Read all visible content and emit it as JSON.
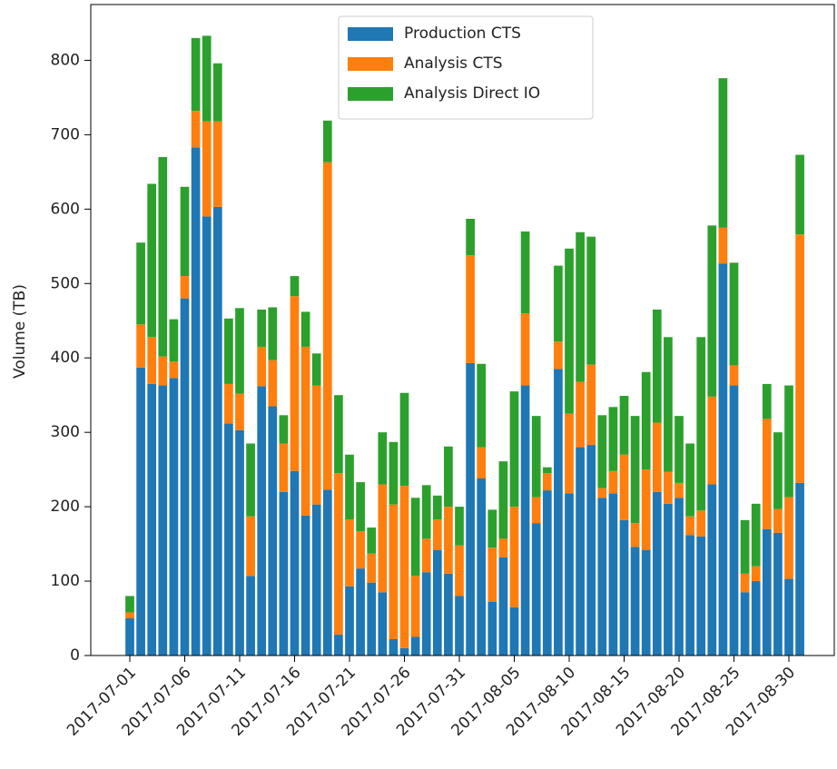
{
  "chart_data": {
    "type": "bar",
    "stacked": true,
    "ylabel": "Volume (TB)",
    "x": [
      "2017-07-01",
      "2017-07-02",
      "2017-07-03",
      "2017-07-04",
      "2017-07-05",
      "2017-07-06",
      "2017-07-07",
      "2017-07-08",
      "2017-07-09",
      "2017-07-10",
      "2017-07-11",
      "2017-07-12",
      "2017-07-13",
      "2017-07-14",
      "2017-07-15",
      "2017-07-16",
      "2017-07-17",
      "2017-07-18",
      "2017-07-19",
      "2017-07-20",
      "2017-07-21",
      "2017-07-22",
      "2017-07-23",
      "2017-07-24",
      "2017-07-25",
      "2017-07-26",
      "2017-07-27",
      "2017-07-28",
      "2017-07-29",
      "2017-07-30",
      "2017-07-31",
      "2017-08-01",
      "2017-08-02",
      "2017-08-03",
      "2017-08-04",
      "2017-08-05",
      "2017-08-06",
      "2017-08-07",
      "2017-08-08",
      "2017-08-09",
      "2017-08-10",
      "2017-08-11",
      "2017-08-12",
      "2017-08-13",
      "2017-08-14",
      "2017-08-15",
      "2017-08-16",
      "2017-08-17",
      "2017-08-18",
      "2017-08-19",
      "2017-08-20",
      "2017-08-21",
      "2017-08-22",
      "2017-08-23",
      "2017-08-24",
      "2017-08-25",
      "2017-08-26",
      "2017-08-27",
      "2017-08-28",
      "2017-08-29",
      "2017-08-30",
      "2017-08-31"
    ],
    "xticks": [
      "2017-07-01",
      "2017-07-06",
      "2017-07-11",
      "2017-07-16",
      "2017-07-21",
      "2017-07-26",
      "2017-07-31",
      "2017-08-05",
      "2017-08-10",
      "2017-08-15",
      "2017-08-20",
      "2017-08-25",
      "2017-08-30"
    ],
    "series": [
      {
        "name": "Production CTS",
        "color": "#1f77b4",
        "values": [
          50,
          387,
          365,
          363,
          373,
          480,
          683,
          590,
          603,
          312,
          303,
          107,
          362,
          335,
          220,
          248,
          188,
          203,
          223,
          28,
          93,
          117,
          98,
          85,
          22,
          10,
          25,
          112,
          142,
          110,
          80,
          393,
          238,
          72,
          132,
          65,
          363,
          178,
          222,
          385,
          218,
          280,
          283,
          212,
          218,
          182,
          146,
          142,
          220,
          204,
          212,
          162,
          160,
          230,
          527,
          363,
          85,
          100,
          170,
          165,
          103,
          232
        ]
      },
      {
        "name": "Analysis CTS",
        "color": "#ff7f0e",
        "values": [
          8,
          58,
          63,
          39,
          22,
          30,
          49,
          128,
          115,
          53,
          49,
          80,
          53,
          62,
          65,
          235,
          227,
          160,
          440,
          217,
          90,
          50,
          39,
          145,
          181,
          218,
          82,
          45,
          41,
          90,
          68,
          145,
          42,
          73,
          25,
          135,
          97,
          35,
          23,
          37,
          107,
          88,
          108,
          13,
          30,
          88,
          32,
          108,
          93,
          43,
          20,
          25,
          35,
          118,
          48,
          27,
          25,
          20,
          148,
          32,
          110,
          334
        ]
      },
      {
        "name": "Analysis Direct IO",
        "color": "#2ca02c",
        "values": [
          22,
          110,
          206,
          268,
          57,
          120,
          98,
          115,
          78,
          88,
          115,
          98,
          50,
          71,
          38,
          27,
          47,
          43,
          56,
          105,
          87,
          66,
          35,
          70,
          84,
          125,
          105,
          72,
          32,
          81,
          52,
          49,
          112,
          51,
          104,
          155,
          110,
          109,
          8,
          102,
          222,
          201,
          172,
          98,
          86,
          79,
          144,
          131,
          152,
          181,
          90,
          98,
          233,
          230,
          201,
          138,
          72,
          84,
          47,
          103,
          150,
          107
        ]
      }
    ],
    "ylim": [
      0,
      875
    ],
    "yticks": [
      0,
      100,
      200,
      300,
      400,
      500,
      600,
      700,
      800
    ],
    "legend": "upper center"
  }
}
